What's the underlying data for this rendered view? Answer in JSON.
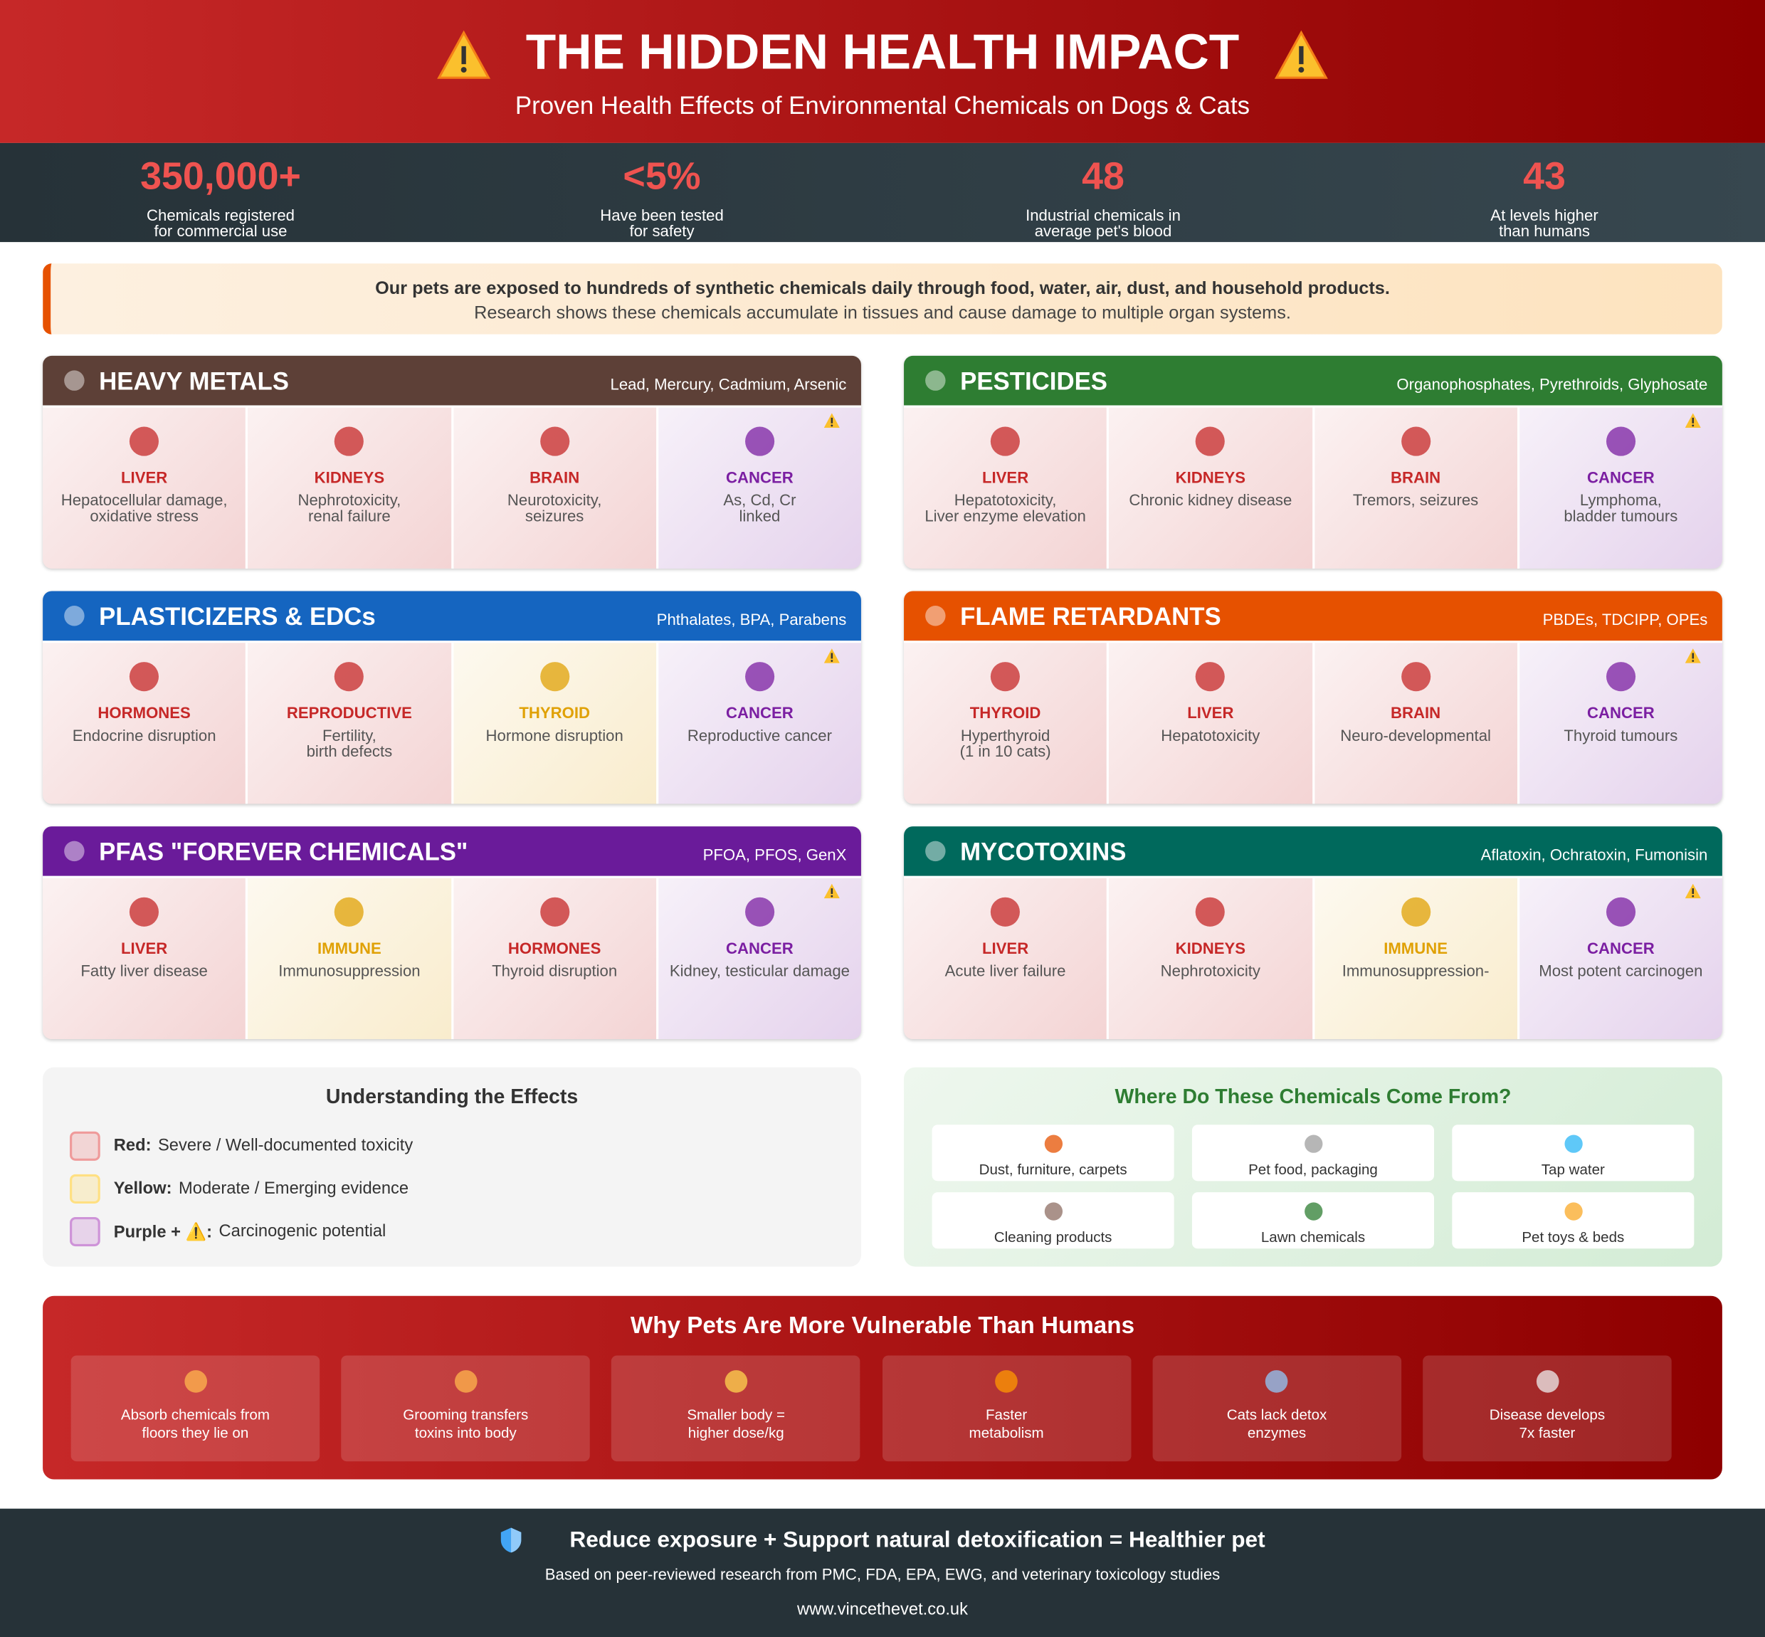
{
  "header": {
    "title": "THE HIDDEN HEALTH IMPACT",
    "subtitle": "Proven Health Effects of Environmental Chemicals on Dogs & Cats"
  },
  "stats": [
    {
      "value": "350,000+",
      "label": [
        "Chemicals registered",
        "for commercial use"
      ]
    },
    {
      "value": "<5%",
      "label": [
        "Have been tested",
        "for safety"
      ]
    },
    {
      "value": "48",
      "label": [
        "Industrial chemicals in",
        "average pet's blood"
      ]
    },
    {
      "value": "43",
      "label": [
        "At levels higher",
        "than humans"
      ]
    }
  ],
  "intro": {
    "bold": "Our pets are exposed to hundreds of synthetic chemicals daily through food, water, air, dust, and household products.",
    "text": "Research shows these chemicals accumulate in tissues and cause damage to multiple organ systems."
  },
  "panels": [
    {
      "title": "HEAVY METALS",
      "subtitle": "Lead, Mercury, Cadmium, Arsenic",
      "color": "#5d4037",
      "cells": [
        {
          "organ": "LIVER",
          "effect": [
            "Hepatocellular damage,",
            "oxidative stress"
          ],
          "color": "#c62828"
        },
        {
          "organ": "KIDNEYS",
          "effect": [
            "Nephrotoxicity,",
            "renal failure"
          ],
          "color": "#c62828"
        },
        {
          "organ": "BRAIN",
          "effect": [
            "Neurotoxicity,",
            "seizures"
          ],
          "color": "#c62828"
        },
        {
          "organ": "CANCER",
          "effect": [
            "As, Cd, Cr",
            "linked"
          ],
          "color": "#7b1fa2"
        }
      ]
    },
    {
      "title": "PESTICIDES",
      "subtitle": "Organophosphates, Pyrethroids, Glyphosate",
      "color": "#2e7d32",
      "cells": [
        {
          "organ": "LIVER",
          "effect": [
            "Hepatotoxicity,",
            "Liver enzyme elevation"
          ],
          "color": "#c62828"
        },
        {
          "organ": "KIDNEYS",
          "effect": [
            "Chronic kidney disease"
          ],
          "color": "#c62828"
        },
        {
          "organ": "BRAIN",
          "effect": [
            "Tremors, seizures"
          ],
          "color": "#c62828"
        },
        {
          "organ": "CANCER",
          "effect": [
            "Lymphoma,",
            "bladder tumours"
          ],
          "color": "#7b1fa2"
        }
      ]
    },
    {
      "title": "PLASTICIZERS & EDCs",
      "subtitle": "Phthalates, BPA, Parabens",
      "color": "#1565c0",
      "cells": [
        {
          "organ": "HORMONES",
          "effect": [
            "Endocrine disruption"
          ],
          "color": "#c62828"
        },
        {
          "organ": "REPRODUCTIVE",
          "effect": [
            "Fertility,",
            "birth defects"
          ],
          "color": "#c62828"
        },
        {
          "organ": "THYROID",
          "effect": [
            "Hormone disruption"
          ],
          "color": "#e0a106"
        },
        {
          "organ": "CANCER",
          "effect": [
            "Reproductive cancer"
          ],
          "color": "#7b1fa2"
        }
      ]
    },
    {
      "title": "FLAME RETARDANTS",
      "subtitle": "PBDEs, TDCIPP, OPEs",
      "color": "#e65100",
      "cells": [
        {
          "organ": "THYROID",
          "effect": [
            "Hyperthyroid",
            "(1 in 10 cats)"
          ],
          "color": "#c62828"
        },
        {
          "organ": "LIVER",
          "effect": [
            "Hepatotoxicity"
          ],
          "color": "#c62828"
        },
        {
          "organ": "BRAIN",
          "effect": [
            "Neuro-developmental"
          ],
          "color": "#c62828"
        },
        {
          "organ": "CANCER",
          "effect": [
            "Thyroid tumours"
          ],
          "color": "#7b1fa2"
        }
      ]
    },
    {
      "title": "PFAS \"FOREVER CHEMICALS\"",
      "subtitle": "PFOA, PFOS, GenX",
      "color": "#6a1b9a",
      "cells": [
        {
          "organ": "LIVER",
          "effect": [
            "Fatty liver disease"
          ],
          "color": "#c62828"
        },
        {
          "organ": "IMMUNE",
          "effect": [
            "Immunosuppression"
          ],
          "color": "#e0a106"
        },
        {
          "organ": "HORMONES",
          "effect": [
            "Thyroid disruption"
          ],
          "color": "#c62828"
        },
        {
          "organ": "CANCER",
          "effect": [
            "Kidney, testicular damage"
          ],
          "color": "#7b1fa2"
        }
      ]
    },
    {
      "title": "MYCOTOXINS",
      "subtitle": "Aflatoxin, Ochratoxin, Fumonisin",
      "color": "#00695c",
      "cells": [
        {
          "organ": "LIVER",
          "effect": [
            "Acute liver failure"
          ],
          "color": "#c62828"
        },
        {
          "organ": "KIDNEYS",
          "effect": [
            "Nephrotoxicity"
          ],
          "color": "#c62828"
        },
        {
          "organ": "IMMUNE",
          "effect": [
            "Immunosuppression-"
          ],
          "color": "#e0a106"
        },
        {
          "organ": "CANCER",
          "effect": [
            "Most potent carcinogen"
          ],
          "color": "#7b1fa2"
        }
      ]
    }
  ],
  "legend": {
    "title": "Understanding the Effects",
    "items": [
      {
        "label": "Red:",
        "text": "Severe / Well-documented toxicity",
        "color": "#ef9a9a"
      },
      {
        "label": "Yellow:",
        "text": "Moderate / Emerging evidence",
        "color": "#ffe082"
      },
      {
        "label": "Purple + ⚠️:",
        "text": "Carcinogenic potential",
        "color": "#ce93d8"
      }
    ]
  },
  "sources": {
    "title": "Where Do These Chemicals Come From?",
    "items": [
      "Dust, furniture, carpets",
      "Pet food, packaging",
      "Tap water",
      "Cleaning products",
      "Lawn chemicals",
      "Pet toys & beds"
    ]
  },
  "vulnerable": {
    "title": "Why Pets Are More Vulnerable Than Humans",
    "items": [
      [
        "Absorb chemicals from",
        "floors they lie on"
      ],
      [
        "Grooming transfers",
        "toxins into body"
      ],
      [
        "Smaller body =",
        "higher dose/kg"
      ],
      [
        "Faster",
        "metabolism"
      ],
      [
        "Cats lack detox",
        "enzymes"
      ],
      [
        "Disease develops",
        "7x faster"
      ]
    ]
  },
  "footer": {
    "headline": "Reduce exposure + Support natural detoxification = Healthier pet",
    "note": "Based on peer-reviewed research from PMC, FDA, EPA, EWG, and veterinary toxicology studies",
    "url": "www.vincethevet.co.uk"
  }
}
